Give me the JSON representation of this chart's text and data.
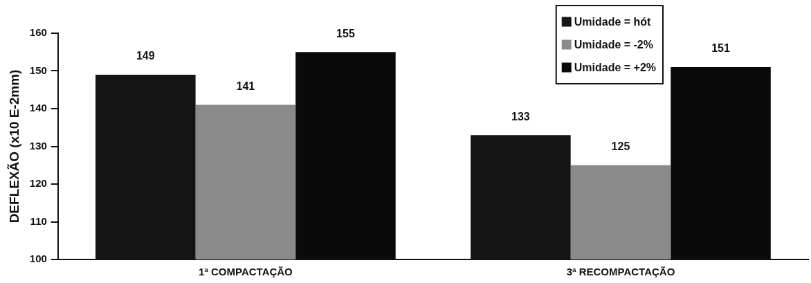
{
  "chart_data": {
    "type": "bar",
    "ylabel": "DEFLEXÃO (x10 E-2mm)",
    "categories": [
      "1ª COMPACTAÇÃO",
      "3ª RECOMPACTAÇÃO"
    ],
    "series": [
      {
        "name": "Umidade = hót",
        "color": "#141414",
        "values": [
          149,
          133
        ]
      },
      {
        "name": "Umidade = -2%",
        "color": "#8a8a8a",
        "values": [
          141,
          125
        ]
      },
      {
        "name": "Umidade = +2%",
        "color": "#0a0a0a",
        "values": [
          155,
          151
        ]
      }
    ],
    "ylim": [
      100,
      160
    ],
    "yticks": [
      100,
      110,
      120,
      130,
      140,
      150,
      160
    ],
    "data_labels": true,
    "legend": "top right"
  }
}
